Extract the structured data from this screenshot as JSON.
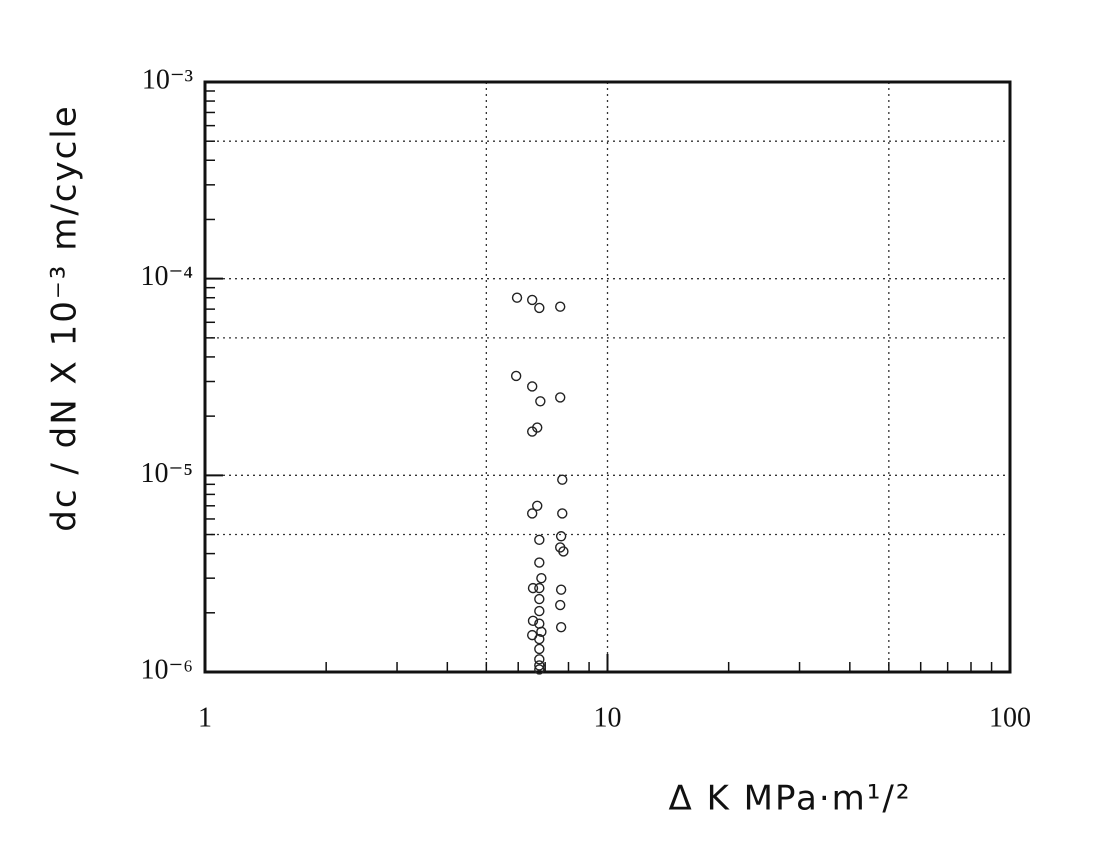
{
  "chart_data": {
    "type": "scatter",
    "x_label": "Δ K   MPa·m¹/²",
    "y_label": "dc / dN   X 10⁻³ m/cycle",
    "x_log": true,
    "y_log": true,
    "xlim": [
      1,
      100
    ],
    "ylim": [
      1e-06,
      0.001
    ],
    "xticks": [
      1,
      10,
      100
    ],
    "yticks": [
      {
        "value": 1e-06,
        "label": "10⁻⁶"
      },
      {
        "value": 1e-05,
        "label": "10⁻⁵"
      },
      {
        "value": 0.0001,
        "label": "10⁻⁴"
      },
      {
        "value": 0.001,
        "label": "10⁻³"
      }
    ],
    "xgrid": [
      5,
      10,
      50
    ],
    "ygrid": [
      0.0005,
      0.0001,
      5e-05,
      1e-05,
      5e-06
    ],
    "xminorticks": [
      2,
      3,
      4,
      5,
      6,
      7,
      8,
      9,
      20,
      30,
      40,
      50,
      60,
      70,
      80,
      90
    ],
    "yminorticks": [
      2e-06,
      3e-06,
      4e-06,
      5e-06,
      6e-06,
      7e-06,
      8e-06,
      9e-06,
      2e-05,
      3e-05,
      4e-05,
      5e-05,
      6e-05,
      7e-05,
      8e-05,
      9e-05,
      0.0002,
      0.0003,
      0.0004,
      0.0005,
      0.0006,
      0.0007,
      0.0008,
      0.0009
    ],
    "series": [
      {
        "color": "#222222",
        "x": [
          5.96,
          6.5,
          6.77,
          7.63,
          5.93,
          6.5,
          6.81,
          7.63,
          6.5,
          6.69,
          7.72,
          6.69,
          6.5,
          7.72,
          7.67,
          7.63,
          7.77,
          6.77,
          6.77,
          6.53,
          6.77,
          7.67,
          6.77,
          6.77,
          7.63,
          6.53,
          6.77,
          7.67,
          6.5,
          6.77,
          6.77,
          6.77,
          6.77,
          6.77,
          6.85,
          6.85
        ],
        "values": [
          8e-05,
          7.8e-05,
          7.1e-05,
          7.2e-05,
          3.2e-05,
          2.83e-05,
          2.38e-05,
          2.49e-05,
          1.67e-05,
          1.75e-05,
          9.5e-06,
          7e-06,
          6.4e-06,
          6.4e-06,
          4.9e-06,
          4.3e-06,
          4.1e-06,
          4.7e-06,
          3.6e-06,
          2.67e-06,
          2.67e-06,
          2.62e-06,
          2.35e-06,
          2.04e-06,
          2.19e-06,
          1.82e-06,
          1.76e-06,
          1.69e-06,
          1.54e-06,
          1.47e-06,
          1.31e-06,
          1.16e-06,
          1.08e-06,
          1.03e-06,
          1.6e-06,
          3e-06
        ]
      }
    ]
  }
}
